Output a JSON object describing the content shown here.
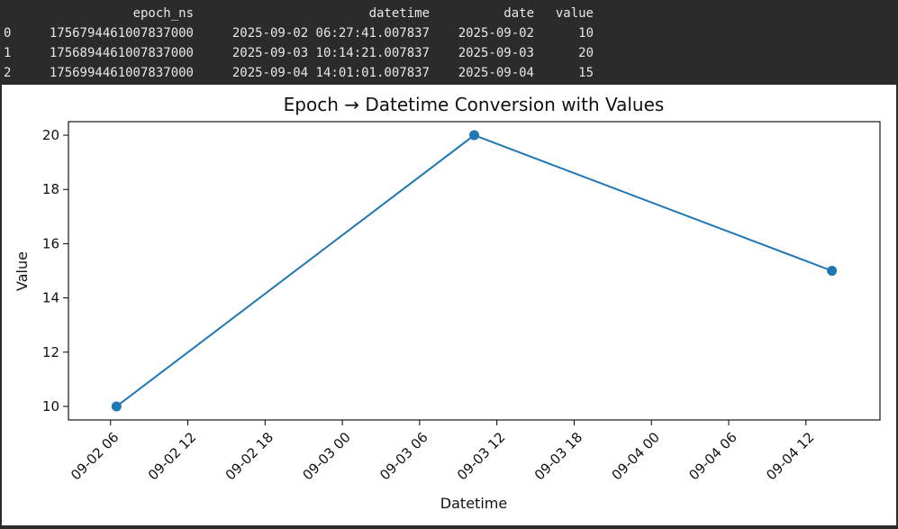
{
  "dataframe": {
    "columns": [
      "epoch_ns",
      "datetime",
      "date",
      "value"
    ],
    "rows": [
      {
        "index": "0",
        "epoch_ns": "1756794461007837000",
        "datetime": "2025-09-02 06:27:41.007837",
        "date": "2025-09-02",
        "value": "10"
      },
      {
        "index": "1",
        "epoch_ns": "1756894461007837000",
        "datetime": "2025-09-03 10:14:21.007837",
        "date": "2025-09-03",
        "value": "20"
      },
      {
        "index": "2",
        "epoch_ns": "1756994461007837000",
        "datetime": "2025-09-04 14:01:01.007837",
        "date": "2025-09-04",
        "value": "15"
      }
    ]
  },
  "chart_data": {
    "type": "line",
    "title": "Epoch → Datetime Conversion with Values",
    "xlabel": "Datetime",
    "ylabel": "Value",
    "x": [
      "2025-09-02 06:27:41.007837",
      "2025-09-03 10:14:21.007837",
      "2025-09-04 14:01:01.007837"
    ],
    "y": [
      10,
      20,
      15
    ],
    "xlim": [
      "2025-09-02 02:43:49",
      "2025-09-04 17:44:53"
    ],
    "ylim": [
      9.5,
      20.5
    ],
    "xticks": [
      "2025-09-02 06:00",
      "2025-09-02 12:00",
      "2025-09-02 18:00",
      "2025-09-03 00:00",
      "2025-09-03 06:00",
      "2025-09-03 12:00",
      "2025-09-03 18:00",
      "2025-09-04 00:00",
      "2025-09-04 06:00",
      "2025-09-04 12:00"
    ],
    "xtick_labels": [
      "09-02 06",
      "09-02 12",
      "09-02 18",
      "09-03 00",
      "09-03 06",
      "09-03 12",
      "09-03 18",
      "09-04 00",
      "09-04 06",
      "09-04 12"
    ],
    "yticks": [
      10,
      12,
      14,
      16,
      18,
      20
    ],
    "ytick_labels": [
      "10",
      "12",
      "14",
      "16",
      "18",
      "20"
    ],
    "series_color": "#1f77b4",
    "marker": "circle",
    "grid": false,
    "legend": false
  }
}
